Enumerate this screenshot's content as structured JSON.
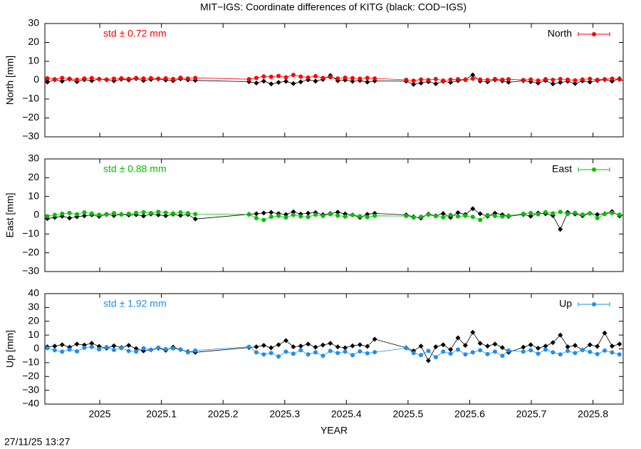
{
  "title": "MIT−IGS: Coordinate differences of KITG (black: COD−IGS)",
  "timestamp": "27/11/25 13:27",
  "chart_data": [
    {
      "type": "line",
      "ylabel": "North [mm]",
      "annotation": "std ± 0.72 mm",
      "legend": "upper right",
      "xlim": [
        2024.911,
        2025.849
      ],
      "xticks": [
        2025,
        2025.1,
        2025.2,
        2025.3,
        2025.4,
        2025.5,
        2025.6,
        2025.7,
        2025.8
      ],
      "xtick_labels": false,
      "ylim": [
        -30,
        30
      ],
      "yticks": [
        {
          "value": -30,
          "label": "−30"
        },
        {
          "value": -20,
          "label": "−20"
        },
        {
          "value": -10,
          "label": "−10"
        },
        0,
        10,
        20,
        30
      ],
      "x": [
        2024.915,
        2024.927,
        2024.939,
        2024.951,
        2024.963,
        2024.975,
        2024.987,
        2024.999,
        2025.011,
        2025.023,
        2025.035,
        2025.047,
        2025.059,
        2025.071,
        2025.083,
        2025.095,
        2025.107,
        2025.119,
        2025.131,
        2025.143,
        2025.155,
        2025.242,
        2025.254,
        2025.266,
        2025.278,
        2025.29,
        2025.302,
        2025.314,
        2025.326,
        2025.338,
        2025.35,
        2025.362,
        2025.374,
        2025.386,
        2025.398,
        2025.41,
        2025.422,
        2025.434,
        2025.446,
        2025.497,
        2025.509,
        2025.521,
        2025.533,
        2025.545,
        2025.557,
        2025.569,
        2025.581,
        2025.593,
        2025.605,
        2025.617,
        2025.629,
        2025.641,
        2025.653,
        2025.663,
        2025.687,
        2025.699,
        2025.711,
        2025.723,
        2025.735,
        2025.747,
        2025.759,
        2025.771,
        2025.783,
        2025.795,
        2025.807,
        2025.819,
        2025.831,
        2025.843
      ],
      "series": [
        {
          "name": "North",
          "color": "#ff0000",
          "values": [
            1,
            0.5,
            1.2,
            0.8,
            0.3,
            0.9,
            1.1,
            0.6,
            0.4,
            0.8,
            1,
            0.7,
            1.2,
            0.9,
            1.1,
            0.8,
            1,
            0.6,
            1.3,
            0.9,
            1.2,
            0.5,
            1.2,
            2,
            1.8,
            2.2,
            1.5,
            2.8,
            1.9,
            1.4,
            2.1,
            1.2,
            1.6,
            0.9,
            1.3,
            1.1,
            0.8,
            1.2,
            0.9,
            0.2,
            -0.3,
            0.4,
            0.1,
            0.6,
            -0.2,
            0.3,
            0.5,
            0.2,
            0.8,
            0.4,
            0.1,
            0.6,
            0.3,
            0.5,
            0.1,
            0.4,
            -0.2,
            0.5,
            0.2,
            0.6,
            0.3,
            -0.1,
            0.4,
            0.7,
            0.2,
            0.5,
            0.8,
            0.4
          ]
        },
        {
          "color": "#000000",
          "values": [
            -1,
            0.2,
            -0.5,
            0.5,
            -0.8,
            0.3,
            -0.3,
            0.6,
            0.2,
            -0.4,
            0.5,
            0.1,
            0.8,
            -0.2,
            0.4,
            0.6,
            0.1,
            -0.3,
            0.7,
            0.2,
            -0.1,
            -0.8,
            -1.5,
            -0.5,
            -2,
            -1.2,
            -0.6,
            -1.8,
            -0.9,
            0.2,
            -0.5,
            0.4,
            2.5,
            -0.3,
            0.1,
            -0.6,
            -0.2,
            -1,
            -0.4,
            -0.5,
            -2.2,
            -1.5,
            -0.8,
            -1.9,
            -0.6,
            -1.2,
            -0.3,
            0.4,
            2.8,
            -0.5,
            -0.9,
            0.2,
            -0.4,
            -1.1,
            -0.3,
            -0.8,
            -1.5,
            -0.2,
            -2,
            -1.2,
            -0.6,
            -1.8,
            -0.4,
            -1,
            -0.2,
            0.3,
            -0.5,
            0.8
          ]
        }
      ]
    },
    {
      "type": "line",
      "ylabel": "East [mm]",
      "annotation": "std ± 0.88 mm",
      "legend": "upper right",
      "xlim": [
        2024.911,
        2025.849
      ],
      "xticks": [
        2025,
        2025.1,
        2025.2,
        2025.3,
        2025.4,
        2025.5,
        2025.6,
        2025.7,
        2025.8
      ],
      "xtick_labels": false,
      "ylim": [
        -30,
        30
      ],
      "yticks": [
        {
          "value": -30,
          "label": "−30"
        },
        {
          "value": -20,
          "label": "−20"
        },
        {
          "value": -10,
          "label": "−10"
        },
        0,
        10,
        20,
        30
      ],
      "x": [
        2024.915,
        2024.927,
        2024.939,
        2024.951,
        2024.963,
        2024.975,
        2024.987,
        2024.999,
        2025.011,
        2025.023,
        2025.035,
        2025.047,
        2025.059,
        2025.071,
        2025.083,
        2025.095,
        2025.107,
        2025.119,
        2025.131,
        2025.143,
        2025.155,
        2025.242,
        2025.254,
        2025.266,
        2025.278,
        2025.29,
        2025.302,
        2025.314,
        2025.326,
        2025.338,
        2025.35,
        2025.362,
        2025.374,
        2025.386,
        2025.398,
        2025.41,
        2025.422,
        2025.434,
        2025.446,
        2025.497,
        2025.509,
        2025.521,
        2025.533,
        2025.545,
        2025.557,
        2025.569,
        2025.581,
        2025.593,
        2025.605,
        2025.617,
        2025.629,
        2025.641,
        2025.653,
        2025.663,
        2025.687,
        2025.699,
        2025.711,
        2025.723,
        2025.735,
        2025.747,
        2025.759,
        2025.771,
        2025.783,
        2025.795,
        2025.807,
        2025.819,
        2025.831,
        2025.843
      ],
      "series": [
        {
          "name": "East",
          "color": "#00c000",
          "values": [
            -0.5,
            0.2,
            0.8,
            1.2,
            0.5,
            1.5,
            0.9,
            0.3,
            0.6,
            1.1,
            0.4,
            0.8,
            1.3,
            1.6,
            1.2,
            1.8,
            1.4,
            1,
            1.5,
            1.1,
            0.6,
            0.4,
            -1.5,
            -2.5,
            -0.8,
            -0.3,
            -1.2,
            0.2,
            -0.6,
            -0.9,
            0.3,
            -0.4,
            0.5,
            -0.2,
            -0.7,
            0.1,
            -0.5,
            -1,
            -0.3,
            -0.4,
            -1.2,
            -0.8,
            0.3,
            -0.5,
            -1.1,
            0.2,
            -0.6,
            -0.3,
            -0.9,
            -2.5,
            0.1,
            -0.4,
            -0.7,
            -0.2,
            0.8,
            1.2,
            0.5,
            1.6,
            1,
            1.8,
            0.7,
            1.3,
            0.4,
            1.1,
            -1.5,
            0.6,
            1.2,
            0.3
          ]
        },
        {
          "color": "#000000",
          "values": [
            -1.8,
            -1.2,
            -0.5,
            -1.5,
            -0.8,
            -0.3,
            0.2,
            -0.6,
            0.4,
            -0.2,
            0.5,
            0.1,
            0.3,
            -0.4,
            0.6,
            0.2,
            -0.3,
            0.5,
            -0.1,
            0.4,
            -2,
            0.5,
            0.8,
            1.2,
            1.5,
            0.9,
            0.4,
            1.8,
            0.6,
            1.1,
            1.4,
            0.3,
            0.9,
            1.6,
            0.7,
            0.2,
            -1.2,
            0.5,
            1,
            0.2,
            -0.8,
            -1.5,
            0.6,
            -0.3,
            0.9,
            -1.2,
            1.4,
            0.4,
            3.5,
            0.8,
            -0.5,
            1.1,
            0.3,
            -0.6,
            0.4,
            -0.5,
            1.2,
            0.8,
            -0.2,
            -7.5,
            1.5,
            0.6,
            -0.3,
            1,
            0.4,
            0.8,
            2,
            -0.4
          ]
        }
      ]
    },
    {
      "type": "line",
      "ylabel": "Up [mm]",
      "xlabel": "YEAR",
      "annotation": "std ± 1.92 mm",
      "legend": "upper right",
      "xlim": [
        2024.911,
        2025.849
      ],
      "xticks": [
        2025,
        2025.1,
        2025.2,
        2025.3,
        2025.4,
        2025.5,
        2025.6,
        2025.7,
        2025.8
      ],
      "xtick_labels": true,
      "ylim": [
        -40,
        40
      ],
      "yticks": [
        {
          "value": -40,
          "label": "−40"
        },
        {
          "value": -30,
          "label": "−30"
        },
        {
          "value": -20,
          "label": "−20"
        },
        {
          "value": -10,
          "label": "−10"
        },
        0,
        10,
        20,
        30,
        40
      ],
      "x": [
        2024.915,
        2024.927,
        2024.939,
        2024.951,
        2024.963,
        2024.975,
        2024.987,
        2024.999,
        2025.011,
        2025.023,
        2025.035,
        2025.047,
        2025.059,
        2025.071,
        2025.083,
        2025.095,
        2025.107,
        2025.119,
        2025.131,
        2025.143,
        2025.155,
        2025.242,
        2025.254,
        2025.266,
        2025.278,
        2025.29,
        2025.302,
        2025.314,
        2025.326,
        2025.338,
        2025.35,
        2025.362,
        2025.374,
        2025.386,
        2025.398,
        2025.41,
        2025.422,
        2025.434,
        2025.446,
        2025.497,
        2025.509,
        2025.521,
        2025.533,
        2025.545,
        2025.557,
        2025.569,
        2025.581,
        2025.593,
        2025.605,
        2025.617,
        2025.629,
        2025.641,
        2025.653,
        2025.663,
        2025.687,
        2025.699,
        2025.711,
        2025.723,
        2025.735,
        2025.747,
        2025.759,
        2025.771,
        2025.783,
        2025.795,
        2025.807,
        2025.819,
        2025.831,
        2025.843
      ],
      "series": [
        {
          "name": "Up",
          "color": "#1e8fef",
          "values": [
            0.5,
            -1,
            -2,
            -0.5,
            -1.8,
            0.8,
            1.5,
            -0.3,
            1.2,
            -0.8,
            0.6,
            -1.5,
            -2,
            0.4,
            -0.6,
            0.9,
            -0.2,
            0.3,
            -0.5,
            -2.5,
            -1.2,
            1.5,
            -2.5,
            -4,
            -3,
            -5.5,
            -2,
            -3.5,
            -1,
            -4,
            -2.5,
            -5,
            -1.5,
            -3,
            -2,
            -4.5,
            -1.8,
            -3.2,
            -2.4,
            0.5,
            -3,
            -4.5,
            -1.5,
            -6,
            -2,
            -3.5,
            -0.5,
            -4,
            -2.5,
            -1,
            -3.8,
            -2,
            -5,
            -1.2,
            -2,
            -1,
            -3.5,
            -0.5,
            -2.5,
            -4,
            -1.5,
            -3,
            -0.8,
            -2.2,
            -3.8,
            -1.2,
            -2.6,
            -4
          ]
        },
        {
          "color": "#000000",
          "values": [
            1.5,
            2,
            3,
            1.2,
            3.5,
            2.8,
            4,
            1.8,
            0.5,
            2.2,
            1,
            2.5,
            0.2,
            -1.5,
            -0.8,
            0.5,
            -1,
            1.2,
            -0.5,
            -2,
            -2.5,
            1,
            1.5,
            2.5,
            0.8,
            3,
            6,
            1.5,
            2,
            3.5,
            1.2,
            2.8,
            4,
            1.5,
            0.8,
            2.2,
            3,
            1.8,
            7,
            0.8,
            -1.5,
            2,
            -8.5,
            1.5,
            3,
            -0.5,
            8,
            2.5,
            12,
            4,
            2,
            3.5,
            1,
            -2.5,
            1.2,
            3,
            0.5,
            2,
            4.5,
            10,
            1.5,
            2.5,
            -0.8,
            3,
            1.8,
            11.5,
            2,
            3.5
          ]
        }
      ]
    }
  ]
}
